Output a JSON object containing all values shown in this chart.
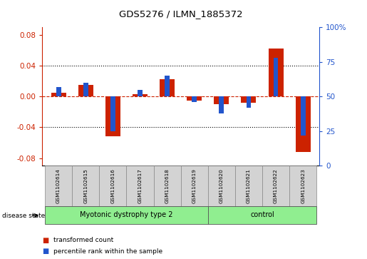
{
  "title": "GDS5276 / ILMN_1885372",
  "samples": [
    "GSM1102614",
    "GSM1102615",
    "GSM1102616",
    "GSM1102617",
    "GSM1102618",
    "GSM1102619",
    "GSM1102620",
    "GSM1102621",
    "GSM1102622",
    "GSM1102623"
  ],
  "red_values": [
    0.005,
    0.015,
    -0.052,
    0.003,
    0.022,
    -0.005,
    -0.01,
    -0.008,
    0.062,
    -0.072
  ],
  "blue_values_pct": [
    57,
    60,
    25,
    55,
    65,
    46,
    38,
    42,
    78,
    22
  ],
  "ylim_left": [
    -0.09,
    0.09
  ],
  "ylim_right": [
    0,
    100
  ],
  "yticks_left": [
    -0.08,
    -0.04,
    0.0,
    0.04,
    0.08
  ],
  "yticks_right": [
    0,
    25,
    50,
    75,
    100
  ],
  "red_color": "#cc2200",
  "blue_color": "#2255cc",
  "background_plot": "#ffffff",
  "background_label": "#d3d3d3",
  "group1_label": "Myotonic dystrophy type 2",
  "group2_label": "control",
  "group1_indices": [
    0,
    1,
    2,
    3,
    4,
    5
  ],
  "group2_indices": [
    6,
    7,
    8,
    9
  ],
  "group1_color": "#90ee90",
  "group2_color": "#90ee90",
  "disease_state_label": "disease state",
  "legend_red": "transformed count",
  "legend_blue": "percentile rank within the sample",
  "red_bar_width": 0.55,
  "blue_bar_width": 0.18
}
